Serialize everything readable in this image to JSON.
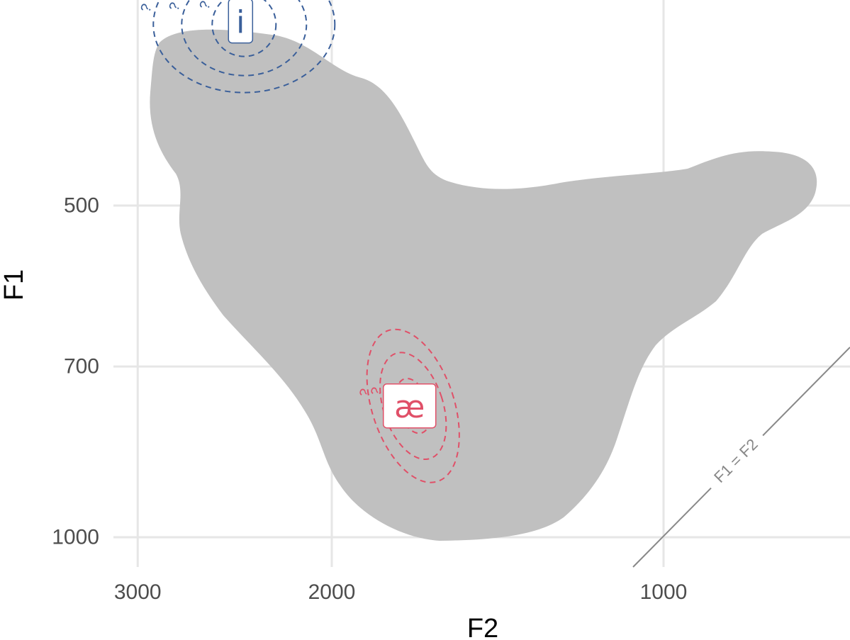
{
  "chart_data": {
    "type": "scatter",
    "title": "",
    "xlabel": "F2",
    "ylabel": "F1",
    "x_reversed": true,
    "y_reversed": true,
    "y_scale": "log",
    "x_scale": "log",
    "x_ticks": [
      3000,
      2000,
      1000
    ],
    "y_ticks": [
      500,
      700,
      1000
    ],
    "grid": true,
    "reference_line": {
      "label": "F1 = F2"
    },
    "background_region_color": "#c0c0c0",
    "vowels": [
      {
        "label": "i",
        "F2": 2420,
        "F1": 340,
        "color": "#3a5f9a",
        "contour_label": "?"
      },
      {
        "label": "æ",
        "F2": 1700,
        "F1": 760,
        "color": "#e05068",
        "contour_label": "?"
      }
    ]
  }
}
